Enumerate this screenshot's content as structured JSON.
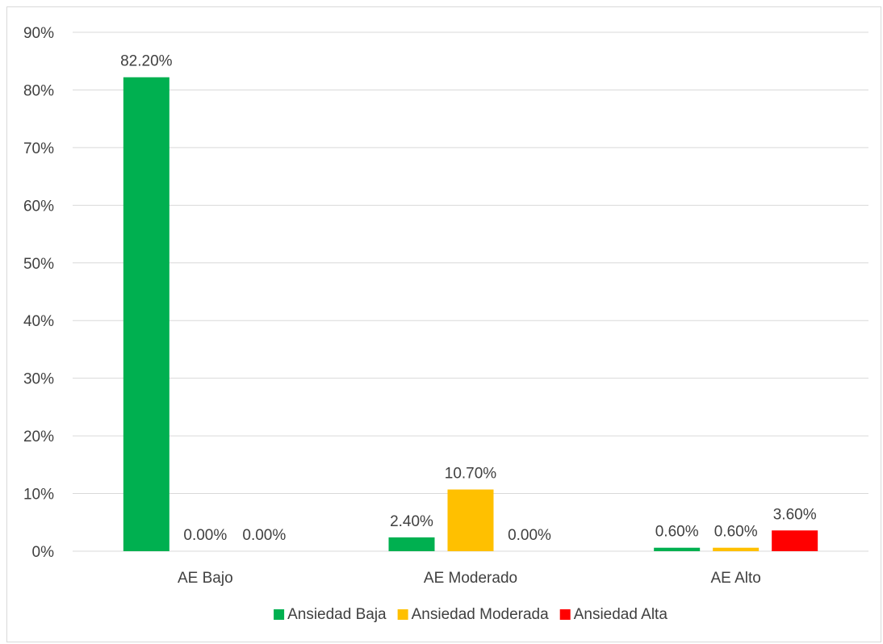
{
  "chart_data": {
    "type": "bar",
    "categories": [
      "AE Bajo",
      "AE Moderado",
      "AE Alto"
    ],
    "series": [
      {
        "name": "Ansiedad Baja",
        "color": "#00b050",
        "values": [
          82.2,
          2.4,
          0.6
        ],
        "labels": [
          "82.20%",
          "2.40%",
          "0.60%"
        ]
      },
      {
        "name": "Ansiedad Moderada",
        "color": "#ffc000",
        "values": [
          0.0,
          10.7,
          0.6
        ],
        "labels": [
          "0.00%",
          "10.70%",
          "0.60%"
        ]
      },
      {
        "name": "Ansiedad Alta",
        "color": "#ff0000",
        "values": [
          0.0,
          0.0,
          3.6
        ],
        "labels": [
          "0.00%",
          "0.00%",
          "3.60%"
        ]
      }
    ],
    "y_ticks": [
      "0%",
      "10%",
      "20%",
      "30%",
      "40%",
      "50%",
      "60%",
      "70%",
      "80%",
      "90%"
    ],
    "ylim": [
      0,
      90
    ],
    "grid": true,
    "legend_position": "bottom",
    "title": "",
    "xlabel": "",
    "ylabel": ""
  }
}
